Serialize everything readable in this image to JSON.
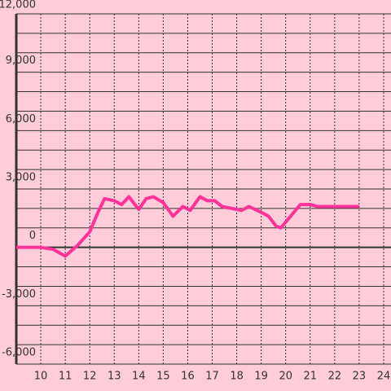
{
  "chart_data": {
    "type": "line",
    "x": [
      9,
      9.5,
      10,
      10.5,
      11,
      11.5,
      12,
      12.3,
      12.6,
      13,
      13.3,
      13.6,
      14,
      14.3,
      14.6,
      15,
      15.4,
      15.8,
      16.1,
      16.5,
      16.8,
      17.1,
      17.4,
      17.8,
      18.2,
      18.5,
      19,
      19.3,
      19.6,
      19.8,
      20.2,
      20.6,
      21,
      21.3,
      23
    ],
    "series": [
      {
        "color": "#ff3399",
        "values": [
          0,
          0,
          0,
          -100,
          -450,
          100,
          800,
          1700,
          2500,
          2400,
          2200,
          2600,
          1950,
          2500,
          2600,
          2300,
          1600,
          2100,
          1900,
          2600,
          2400,
          2400,
          2100,
          2000,
          1900,
          2100,
          1800,
          1600,
          1100,
          1000,
          1600,
          2200,
          2200,
          2100,
          2100
        ]
      }
    ],
    "xlim": [
      9,
      24.3
    ],
    "xticks": [
      10,
      11,
      12,
      13,
      14,
      15,
      16,
      17,
      18,
      19,
      20,
      21,
      22,
      23,
      24
    ],
    "ylim": [
      -6000,
      12000
    ],
    "yticks": [
      {
        "value": -6000,
        "label": "-6,000"
      },
      {
        "value": -3000,
        "label": "-3,000"
      },
      0,
      {
        "value": 3000,
        "label": "3,000"
      },
      {
        "value": 6000,
        "label": "6,000"
      },
      {
        "value": 9000,
        "label": "9,000"
      },
      {
        "value": 12000,
        "label": "12,000"
      }
    ],
    "minor_yticks": [
      -5000,
      -4000,
      -2000,
      -1000,
      1000,
      2000,
      4000,
      5000,
      7000,
      8000,
      10000,
      11000
    ],
    "grid": true
  }
}
